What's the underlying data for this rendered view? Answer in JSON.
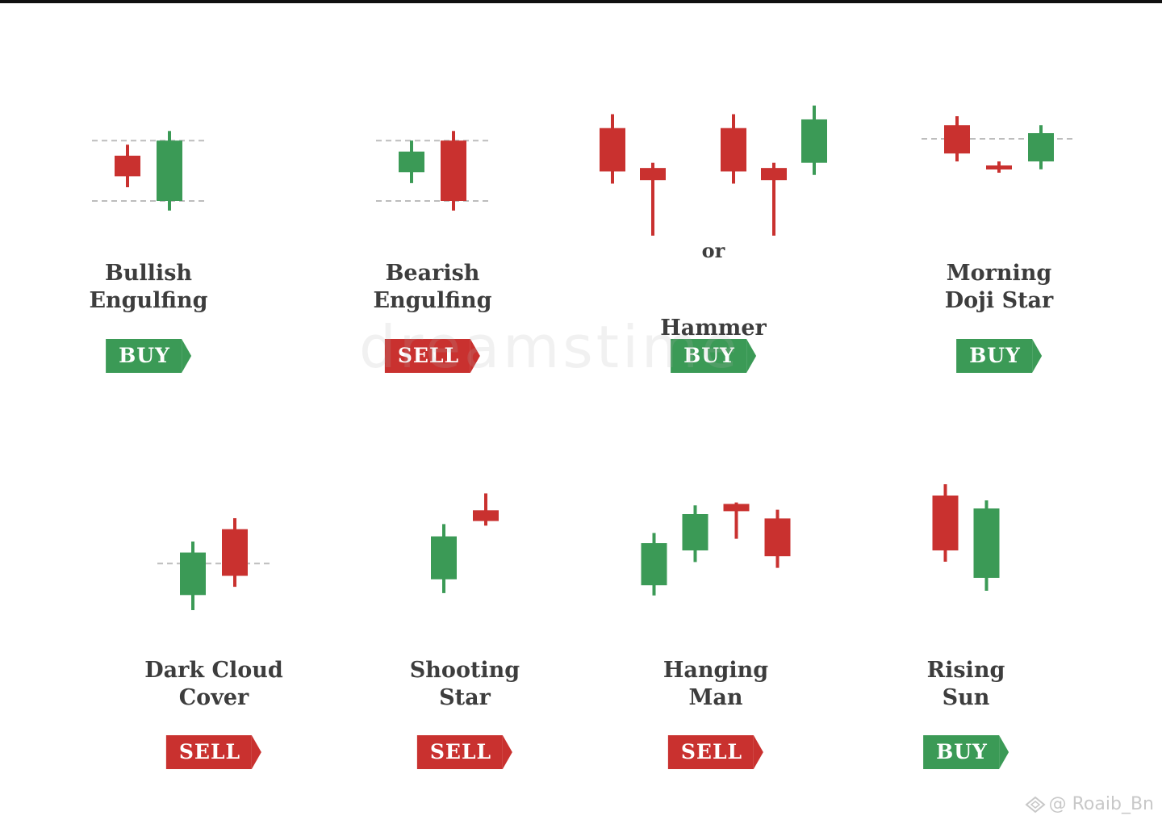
{
  "colors": {
    "bull": "#3b9a56",
    "bear": "#c9312f",
    "guide": "#bdbdbd",
    "text": "#3d3d3d"
  },
  "watermark_text": "dreamstime",
  "credit": {
    "text": "@ Roaib_Bn",
    "icon": "diamond-logo-icon"
  },
  "patterns": [
    {
      "name": "bullish-engulfing",
      "label_lines": [
        "Bullish",
        "Engulfing"
      ],
      "signal": "BUY",
      "candles": [
        {
          "dir": "bear",
          "open": 63,
          "close": 48,
          "high": 71,
          "low": 40
        },
        {
          "dir": "bull",
          "open": 30,
          "close": 74,
          "high": 81,
          "low": 23
        }
      ],
      "guides": [
        74,
        30
      ]
    },
    {
      "name": "bearish-engulfing",
      "label_lines": [
        "Bearish",
        "Engulfing"
      ],
      "signal": "SELL",
      "candles": [
        {
          "dir": "bull",
          "open": 51,
          "close": 66,
          "high": 74,
          "low": 43
        },
        {
          "dir": "bear",
          "open": 74,
          "close": 30,
          "high": 81,
          "low": 23
        }
      ],
      "guides": [
        74,
        30
      ]
    },
    {
      "name": "hammer",
      "label_lines": [
        "Hammer"
      ],
      "or_text": "or",
      "signal": "BUY",
      "candles": [
        {
          "dir": "bear",
          "open": 82,
          "close": 57,
          "high": 90,
          "low": 50
        },
        {
          "dir": "bear",
          "open": 59,
          "close": 52,
          "high": 62,
          "low": 20
        },
        {
          "dir": "gap"
        },
        {
          "dir": "bear",
          "open": 82,
          "close": 57,
          "high": 90,
          "low": 50
        },
        {
          "dir": "bear",
          "open": 59,
          "close": 52,
          "high": 62,
          "low": 20
        },
        {
          "dir": "bull",
          "open": 62,
          "close": 87,
          "high": 95,
          "low": 55
        }
      ],
      "guides": []
    },
    {
      "name": "morning-doji-star",
      "label_lines": [
        "Morning",
        "Doji Star"
      ],
      "signal": "BUY",
      "candles": [
        {
          "dir": "bear",
          "open": 82,
          "close": 57,
          "high": 90,
          "low": 50
        },
        {
          "dir": "bear",
          "open": 45,
          "close": 45,
          "high": 50,
          "low": 40
        },
        {
          "dir": "bull",
          "open": 50,
          "close": 75,
          "high": 82,
          "low": 43
        }
      ],
      "guides": [
        70
      ]
    },
    {
      "name": "dark-cloud-cover",
      "label_lines": [
        "Dark Cloud",
        "Cover"
      ],
      "signal": "SELL",
      "candles": [
        {
          "dir": "bull",
          "open": 31,
          "close": 62,
          "high": 70,
          "low": 20
        },
        {
          "dir": "bear",
          "open": 79,
          "close": 45,
          "high": 87,
          "low": 37
        }
      ],
      "guides": [
        54
      ]
    },
    {
      "name": "shooting-star",
      "label_lines": [
        "Shooting",
        "Star"
      ],
      "signal": "SELL",
      "candles": [
        {
          "dir": "bull",
          "open": 38,
          "close": 66,
          "high": 74,
          "low": 29
        },
        {
          "dir": "bear",
          "open": 83,
          "close": 76,
          "high": 94,
          "low": 73
        }
      ],
      "guides": []
    },
    {
      "name": "hanging-man",
      "label_lines": [
        "Hanging",
        "Man"
      ],
      "signal": "SELL",
      "candles": [
        {
          "dir": "bull",
          "open": 36,
          "close": 65,
          "high": 72,
          "low": 29
        },
        {
          "dir": "bull",
          "open": 60,
          "close": 85,
          "high": 91,
          "low": 52
        },
        {
          "dir": "bear",
          "open": 92,
          "close": 87,
          "high": 93,
          "low": 68
        },
        {
          "dir": "bear",
          "open": 82,
          "close": 56,
          "high": 88,
          "low": 48
        }
      ],
      "guides": []
    },
    {
      "name": "rising-sun",
      "label_lines": [
        "Rising",
        "Sun"
      ],
      "signal": "BUY",
      "candles": [
        {
          "dir": "bear",
          "open": 88,
          "close": 54,
          "high": 95,
          "low": 47
        },
        {
          "dir": "bull",
          "open": 37,
          "close": 80,
          "high": 85,
          "low": 29
        }
      ],
      "guides": []
    }
  ]
}
